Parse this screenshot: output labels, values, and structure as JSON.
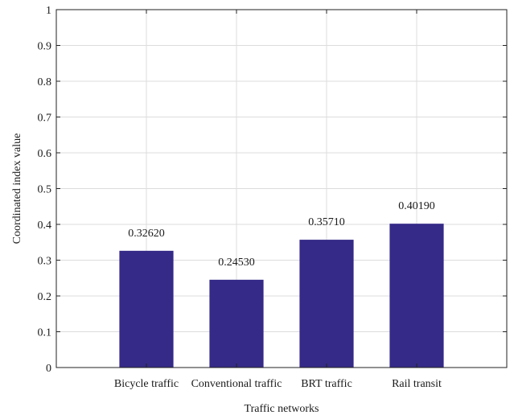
{
  "chart_data": {
    "type": "bar",
    "categories": [
      "Bicycle traffic",
      "Conventional traffic",
      "BRT traffic",
      "Rail transit"
    ],
    "values": [
      0.3262,
      0.2453,
      0.3571,
      0.4019
    ],
    "data_labels": [
      "0.32620",
      "0.24530",
      "0.35710",
      "0.40190"
    ],
    "xlabel": "Traffic networks",
    "ylabel": "Coordinated index value",
    "ylim": [
      0,
      1
    ],
    "yticks": [
      0,
      0.1,
      0.2,
      0.3,
      0.4,
      0.5,
      0.6,
      0.7,
      0.8,
      0.9,
      1
    ],
    "ytick_labels": [
      "0",
      "0.1",
      "0.2",
      "0.3",
      "0.4",
      "0.5",
      "0.6",
      "0.7",
      "0.8",
      "0.9",
      "1"
    ],
    "grid": true,
    "bar_color": "#352a87"
  }
}
